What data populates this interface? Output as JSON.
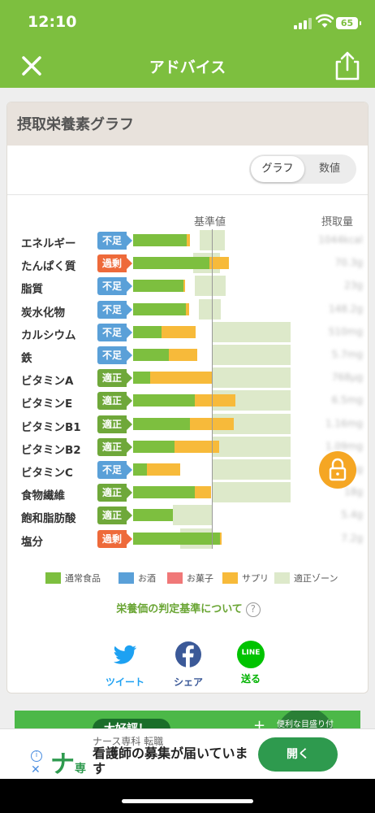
{
  "status_bar": {
    "time": "12:10",
    "battery": "65"
  },
  "nav": {
    "title": "アドバイス"
  },
  "card": {
    "title": "摂取栄養素グラフ"
  },
  "view_toggle": {
    "graph": "グラフ",
    "numbers": "数値"
  },
  "chart_header": {
    "baseline_label": "基準値",
    "intake_label": "摂取量"
  },
  "status_labels": {
    "under": "不足",
    "ok": "適正",
    "over": "過剰"
  },
  "chart_data": {
    "type": "bar",
    "title": "摂取栄養素グラフ",
    "baseline": 100,
    "scale_max": 200,
    "series": [
      {
        "name": "通常食品",
        "color": "#7dbf3f"
      },
      {
        "name": "サプリ",
        "color": "#f7ba3a"
      }
    ],
    "rows": [
      {
        "name": "エネルギー",
        "status": "under",
        "food": 68,
        "supp": 4,
        "zone": [
          85,
          116
        ],
        "value": "1044kcal"
      },
      {
        "name": "たんぱく質",
        "status": "over",
        "food": 97,
        "supp": 25,
        "zone": [
          76,
          110
        ],
        "value": "70.3g"
      },
      {
        "name": "脂質",
        "status": "under",
        "food": 64,
        "supp": 2,
        "zone": [
          78,
          118
        ],
        "value": "23g"
      },
      {
        "name": "炭水化物",
        "status": "under",
        "food": 67,
        "supp": 4,
        "zone": [
          84,
          111
        ],
        "value": "148.2g"
      },
      {
        "name": "カルシウム",
        "status": "under",
        "food": 36,
        "supp": 43,
        "zone": [
          100,
          200
        ],
        "value": "510mg"
      },
      {
        "name": "鉄",
        "status": "under",
        "food": 45,
        "supp": 36,
        "zone": [
          100,
          200
        ],
        "value": "5.7mg"
      },
      {
        "name": "ビタミンA",
        "status": "ok",
        "food": 22,
        "supp": 79,
        "zone": [
          100,
          200
        ],
        "value": "768μg"
      },
      {
        "name": "ビタミンE",
        "status": "ok",
        "food": 78,
        "supp": 52,
        "zone": [
          100,
          200
        ],
        "value": "6.5mg"
      },
      {
        "name": "ビタミンB1",
        "status": "ok",
        "food": 72,
        "supp": 56,
        "zone": [
          100,
          200
        ],
        "value": "1.16mg"
      },
      {
        "name": "ビタミンB2",
        "status": "ok",
        "food": 53,
        "supp": 56,
        "zone": [
          100,
          200
        ],
        "value": "1.09mg"
      },
      {
        "name": "ビタミンC",
        "status": "under",
        "food": 18,
        "supp": 42,
        "zone": [
          100,
          200
        ],
        "value": "60mg"
      },
      {
        "name": "食物繊維",
        "status": "ok",
        "food": 78,
        "supp": 21,
        "zone": [
          100,
          200
        ],
        "value": "18g"
      },
      {
        "name": "飽和脂肪酸",
        "status": "ok",
        "food": 50,
        "supp": 0,
        "zone": [
          50,
          100
        ],
        "value": "5.4g"
      },
      {
        "name": "塩分",
        "status": "over",
        "food": 110,
        "supp": 2,
        "zone": [
          60,
          100
        ],
        "value": "7.2g"
      }
    ]
  },
  "legend": [
    {
      "label": "通常食品",
      "color": "#7dbf3f"
    },
    {
      "label": "お酒",
      "color": "#5aa0d8"
    },
    {
      "label": "お菓子",
      "color": "#f07878"
    },
    {
      "label": "サプリ",
      "color": "#f7ba3a"
    },
    {
      "label": "適正ゾーン",
      "color": "#dde9ca"
    }
  ],
  "criteria_link": "栄養価の判定基準について",
  "criteria_help": "?",
  "share": {
    "twitter": "ツイート",
    "facebook": "シェア",
    "line": "送る",
    "line_logo": "LINE"
  },
  "promo": {
    "tag": "大好評！",
    "circle_text": "便利な目盛り付き",
    "plus": "+"
  },
  "ad": {
    "info": "i",
    "close": "✕",
    "logo_main": "ナ",
    "logo_sub": "専",
    "brand": "ナース専科 転職",
    "headline": "看護師の募集が届いています",
    "button": "開く"
  }
}
